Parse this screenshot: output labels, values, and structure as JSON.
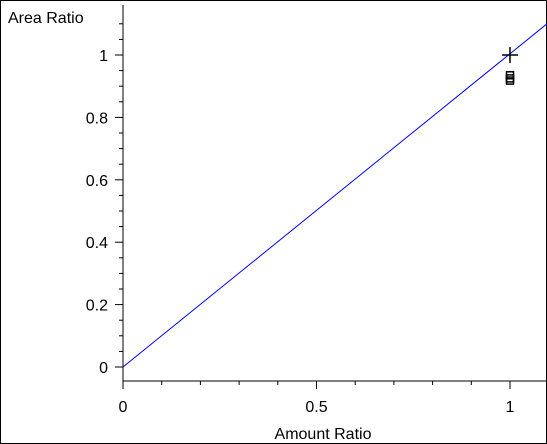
{
  "chart_data": {
    "type": "scatter",
    "title": "",
    "xlabel": "Amount Ratio",
    "ylabel": "Area Ratio",
    "xlim": [
      0,
      1.1
    ],
    "ylim": [
      -0.04,
      1.13
    ],
    "x_ticks": [
      0,
      0.5,
      1
    ],
    "x_tick_labels": [
      "0",
      "0.5",
      "1"
    ],
    "y_ticks": [
      0,
      0.2,
      0.4,
      0.6,
      0.8,
      1
    ],
    "y_tick_labels": [
      "0",
      "0.2",
      "0.4",
      "0.6",
      "0.8",
      "1"
    ],
    "grid": false,
    "legend": "none",
    "fit_line": {
      "slope": 1.0,
      "intercept": 0.0,
      "color": "#0000ff"
    },
    "reference_point": {
      "x": 1.0,
      "y": 1.0,
      "marker": "plus"
    },
    "series": [
      {
        "marker": "square",
        "color": "#000000",
        "points": [
          {
            "x": 1.0,
            "y": 0.935
          },
          {
            "x": 1.0,
            "y": 0.925
          },
          {
            "x": 1.0,
            "y": 0.918
          }
        ]
      }
    ]
  }
}
